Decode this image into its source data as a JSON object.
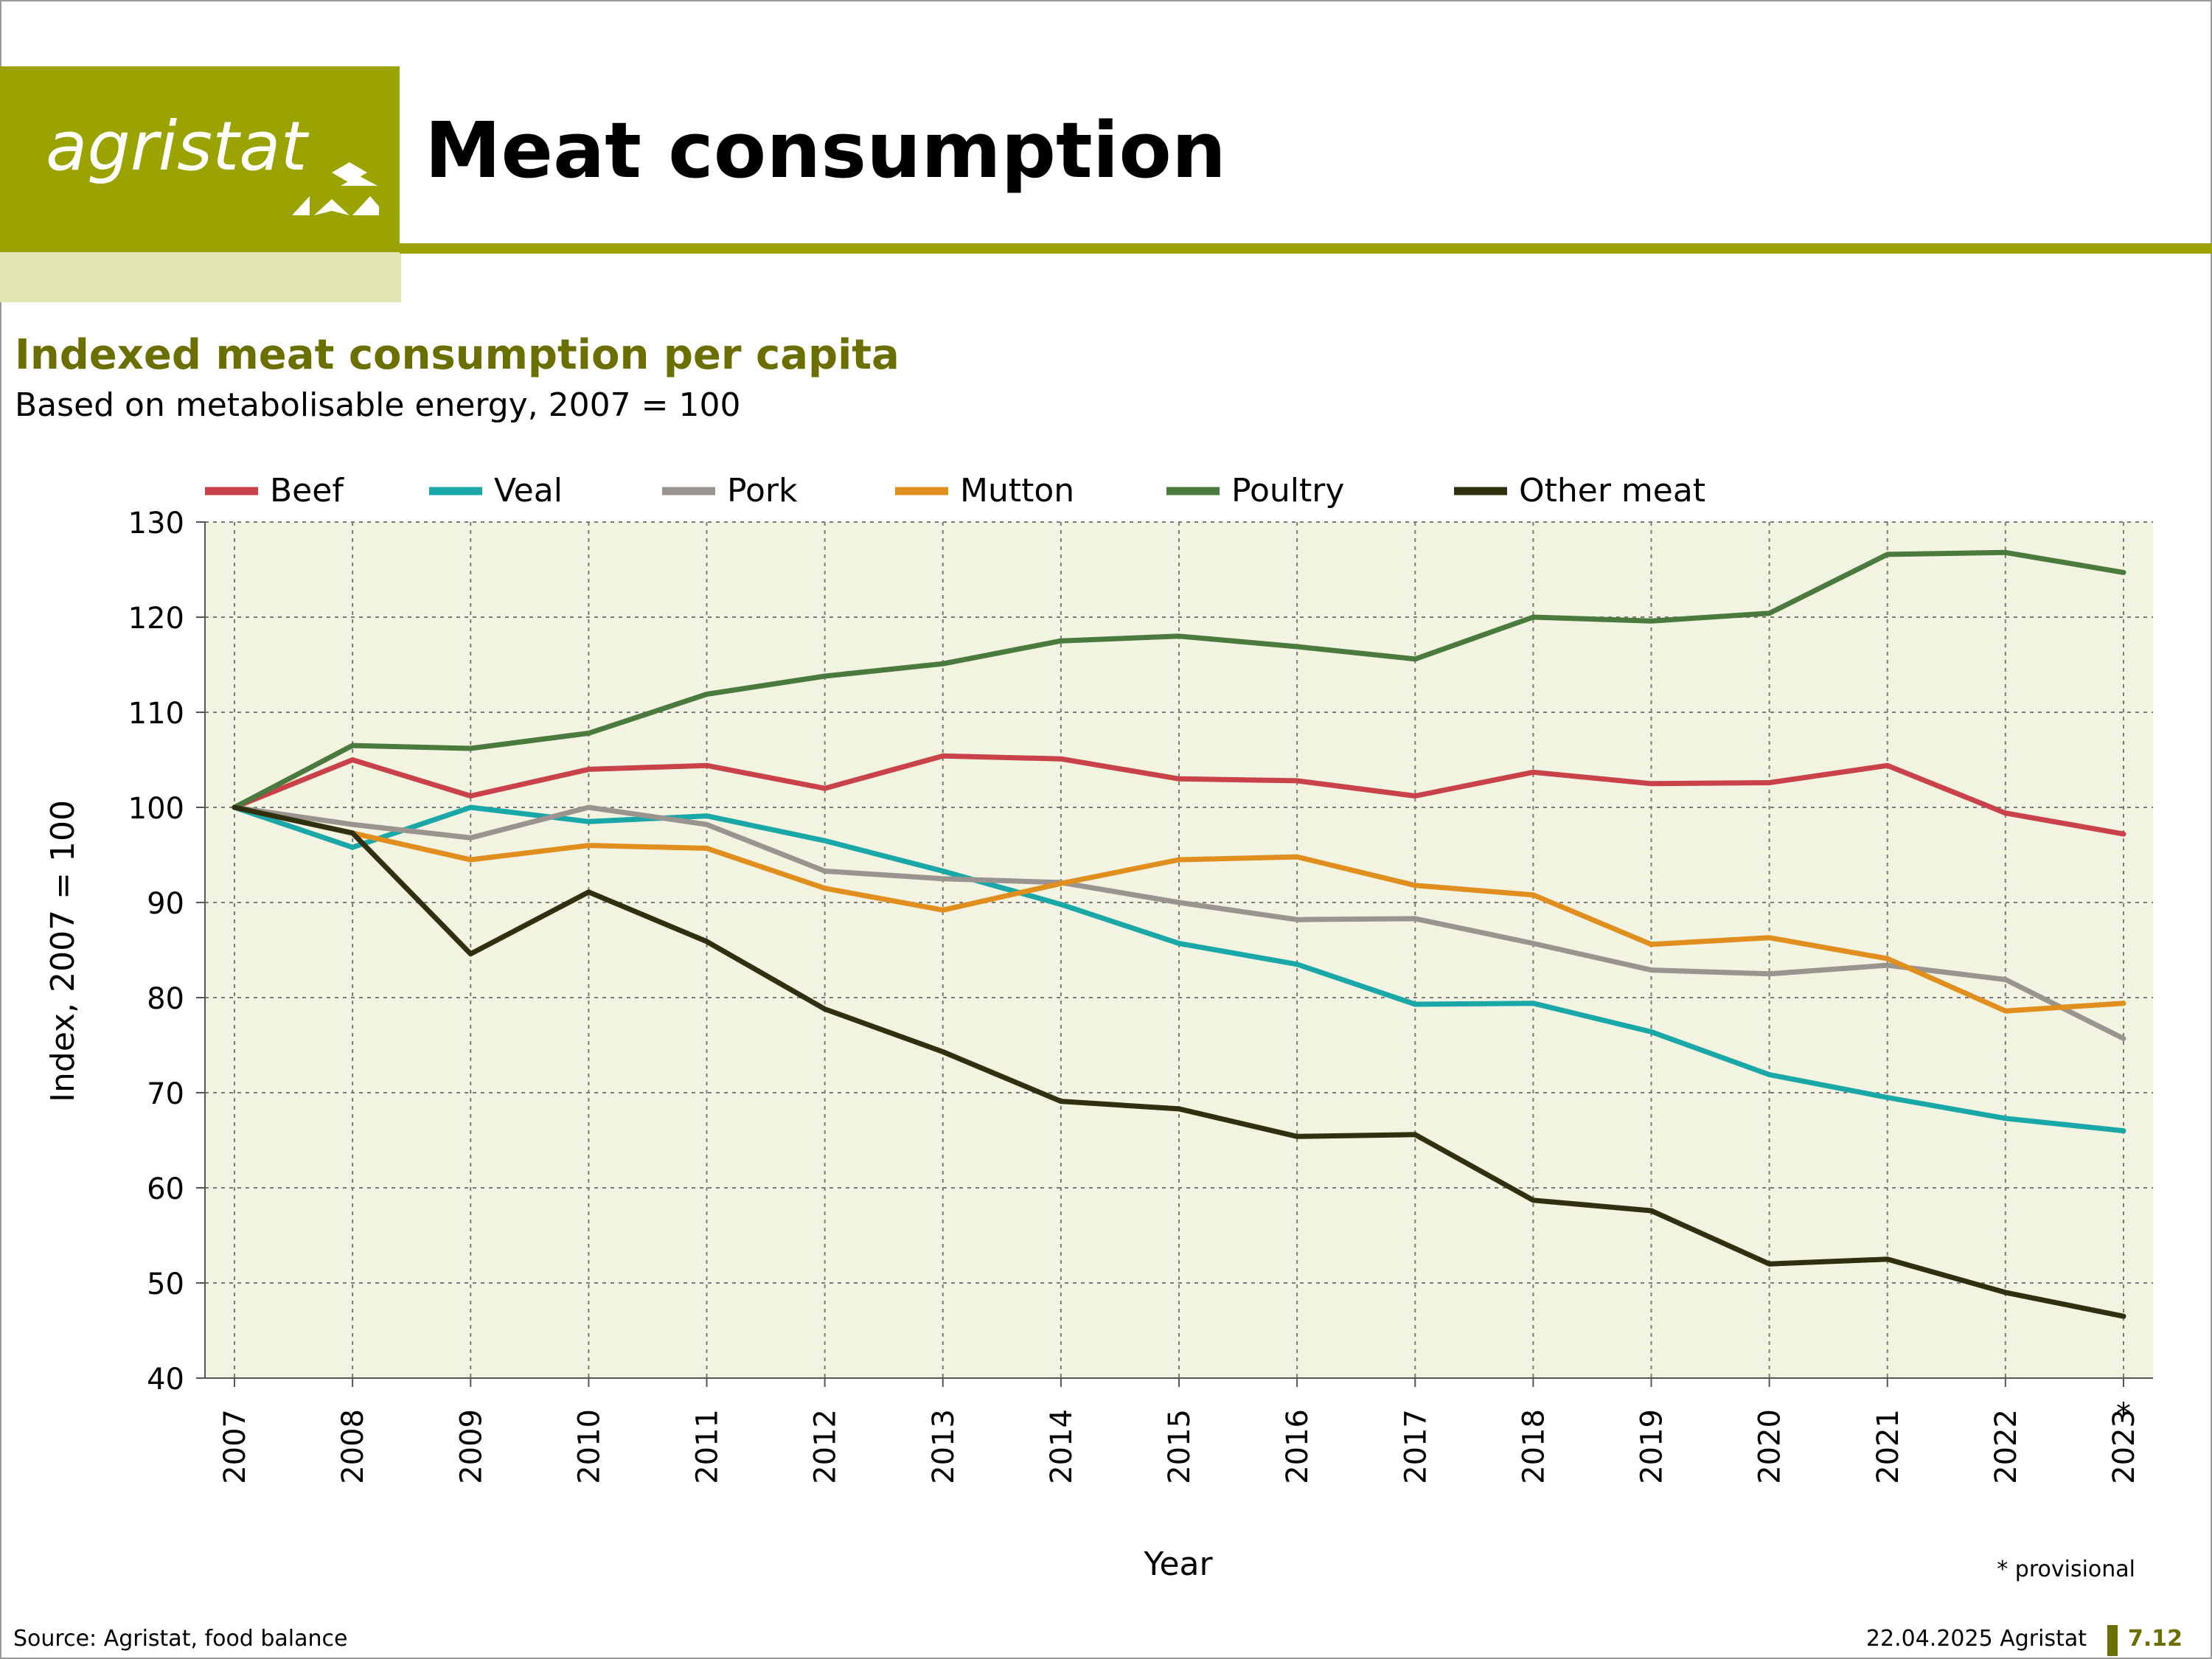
{
  "header": {
    "logo_text": "agristat",
    "title": "Meat consumption"
  },
  "chart_data": {
    "type": "line",
    "title": "Indexed meat consumption per capita",
    "subtitle": "Based on metabolisable energy, 2007 = 100",
    "xlabel": "Year",
    "ylabel": "Index, 2007 = 100",
    "ylim": [
      40,
      130
    ],
    "y_ticks": [
      40,
      50,
      60,
      70,
      80,
      90,
      100,
      110,
      120,
      130
    ],
    "grid": true,
    "legend_position": "top",
    "categories": [
      "2007",
      "2008",
      "2009",
      "2010",
      "2011",
      "2012",
      "2013",
      "2014",
      "2015",
      "2016",
      "2017",
      "2018",
      "2019",
      "2020",
      "2021",
      "2022",
      "2023"
    ],
    "provisional_marker": "*",
    "provisional_category": "2023",
    "series": [
      {
        "name": "Beef",
        "color": "#c9424a",
        "values": [
          100,
          105,
          101.2,
          104,
          104.4,
          102,
          105.4,
          105.1,
          103,
          102.8,
          101.2,
          103.7,
          102.5,
          102.6,
          104.4,
          99.4,
          97.2
        ]
      },
      {
        "name": "Veal",
        "color": "#1aa7a7",
        "values": [
          100,
          95.8,
          100,
          98.5,
          99.1,
          96.5,
          93.3,
          89.8,
          85.7,
          83.5,
          79.3,
          79.4,
          76.4,
          71.9,
          69.5,
          67.3,
          66
        ]
      },
      {
        "name": "Pork",
        "color": "#9a9490",
        "values": [
          100,
          98.2,
          96.8,
          100,
          98.2,
          93.3,
          92.5,
          92.1,
          90,
          88.2,
          88.3,
          85.7,
          82.9,
          82.5,
          83.4,
          81.9,
          75.7
        ]
      },
      {
        "name": "Mutton",
        "color": "#e08f1e",
        "values": [
          100,
          97.3,
          94.5,
          96,
          95.7,
          91.5,
          89.2,
          92,
          94.5,
          94.8,
          91.8,
          90.8,
          85.6,
          86.3,
          84.1,
          78.6,
          79.4
        ]
      },
      {
        "name": "Poultry",
        "color": "#4a7a3e",
        "values": [
          100,
          106.5,
          106.2,
          107.8,
          111.9,
          113.8,
          115.1,
          117.5,
          118,
          116.9,
          115.6,
          120,
          119.6,
          120.4,
          126.6,
          126.8,
          124.7
        ]
      },
      {
        "name": "Other meat",
        "color": "#2e3010",
        "values": [
          100,
          97.3,
          84.6,
          91.1,
          85.9,
          78.8,
          74.3,
          69.1,
          68.3,
          65.4,
          65.6,
          58.7,
          57.6,
          52,
          52.5,
          49,
          46.5
        ]
      }
    ]
  },
  "footer": {
    "source": "Source: Agristat, food balance",
    "provisional_note": "* provisional",
    "date_org": "22.04.2025 Agristat",
    "page_number": "7.12"
  }
}
